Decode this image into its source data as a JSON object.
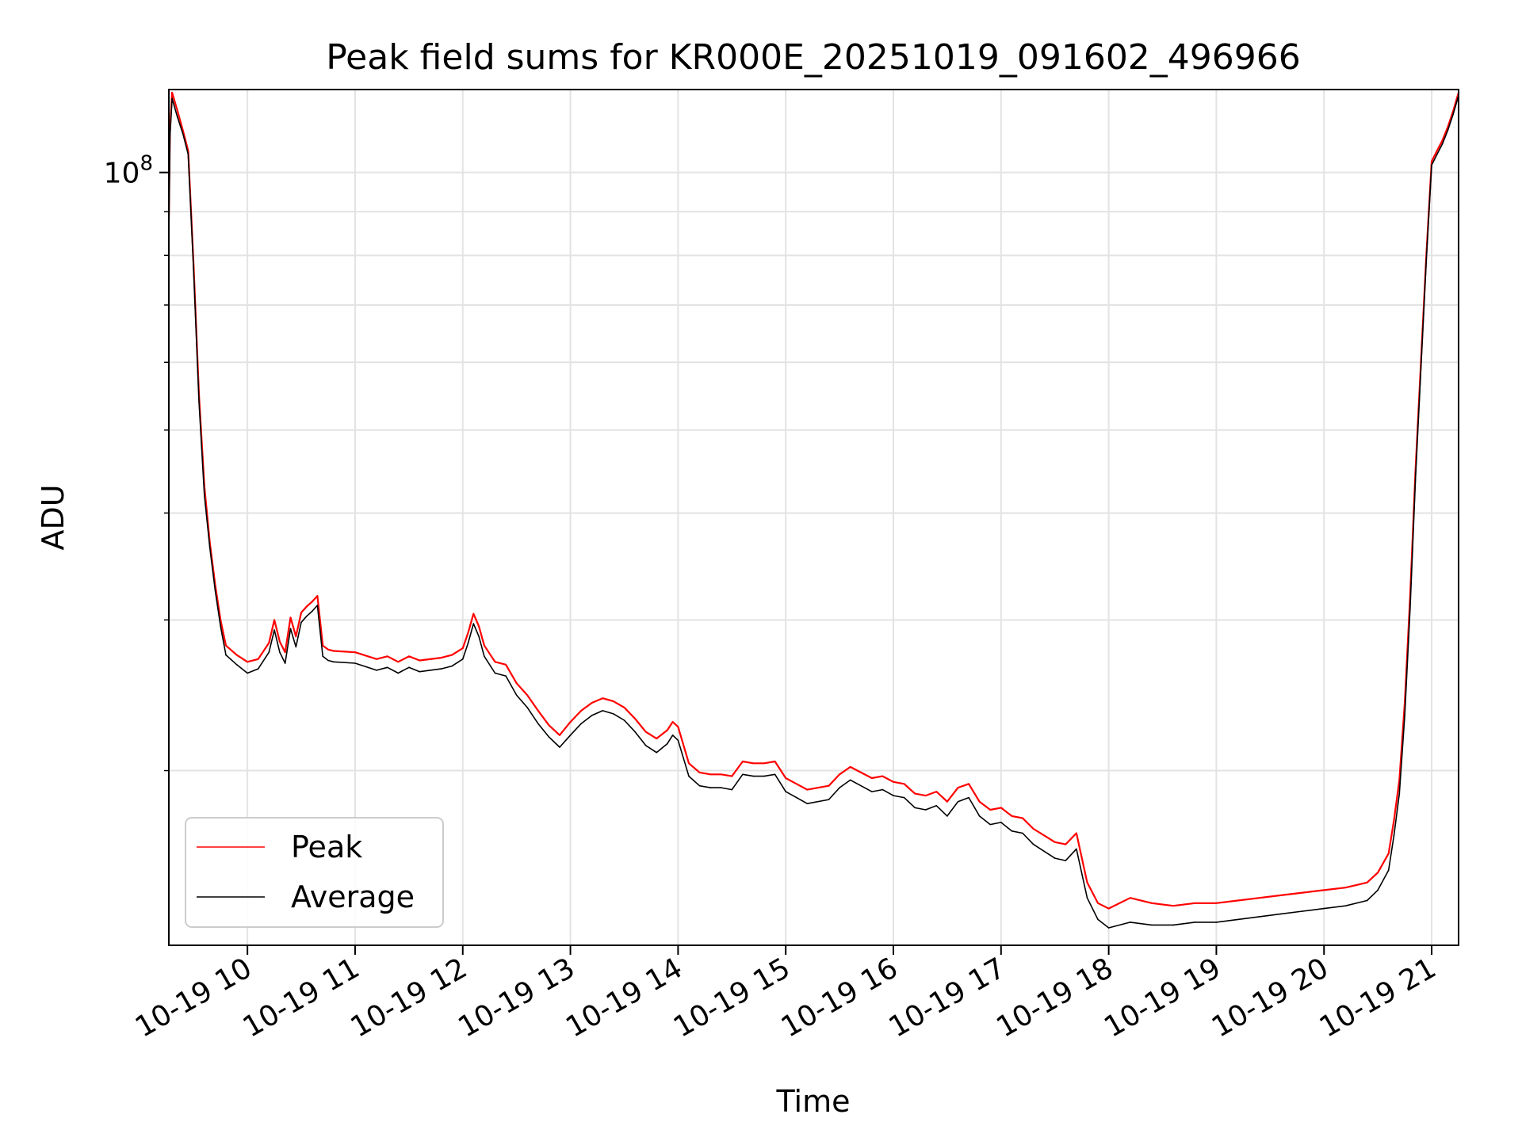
{
  "chart_data": {
    "type": "line",
    "title": "Peak field sums for KR000E_20251019_091602_496966",
    "xlabel": "Time",
    "ylabel": "ADU",
    "yscale": "log",
    "ylim": [
      12500000,
      125000000
    ],
    "xlim": [
      9.27,
      21.25
    ],
    "x_tick_values": [
      10,
      11,
      12,
      13,
      14,
      15,
      16,
      17,
      18,
      19,
      20,
      21
    ],
    "x_tick_labels": [
      "10-19 10",
      "10-19 11",
      "10-19 12",
      "10-19 13",
      "10-19 14",
      "10-19 15",
      "10-19 16",
      "10-19 17",
      "10-19 18",
      "10-19 19",
      "10-19 20",
      "10-19 21"
    ],
    "y_major_ticks": [
      {
        "value": 100000000,
        "base": "10",
        "exponent": "8"
      }
    ],
    "y_minor_ticks": [
      20000000,
      30000000,
      40000000,
      50000000,
      60000000,
      70000000,
      80000000,
      90000000
    ],
    "grid": true,
    "legend_position": "lower-left",
    "series": [
      {
        "name": "Peak",
        "color": "#ff0000",
        "x": [
          9.27,
          9.28,
          9.3,
          9.35,
          9.4,
          9.45,
          9.5,
          9.55,
          9.6,
          9.65,
          9.7,
          9.75,
          9.8,
          9.9,
          10.0,
          10.1,
          10.2,
          10.25,
          10.3,
          10.35,
          10.4,
          10.45,
          10.5,
          10.55,
          10.6,
          10.65,
          10.7,
          10.75,
          10.8,
          11.0,
          11.2,
          11.3,
          11.4,
          11.5,
          11.6,
          11.8,
          11.9,
          12.0,
          12.05,
          12.1,
          12.15,
          12.2,
          12.3,
          12.4,
          12.5,
          12.6,
          12.7,
          12.8,
          12.9,
          13.0,
          13.1,
          13.2,
          13.3,
          13.4,
          13.5,
          13.6,
          13.7,
          13.8,
          13.9,
          13.95,
          14.0,
          14.1,
          14.2,
          14.3,
          14.4,
          14.5,
          14.6,
          14.7,
          14.8,
          14.9,
          15.0,
          15.1,
          15.2,
          15.4,
          15.5,
          15.6,
          15.8,
          15.9,
          16.0,
          16.1,
          16.2,
          16.3,
          16.4,
          16.5,
          16.6,
          16.7,
          16.8,
          16.9,
          17.0,
          17.1,
          17.2,
          17.3,
          17.4,
          17.5,
          17.6,
          17.7,
          17.8,
          17.9,
          18.0,
          18.2,
          18.4,
          18.6,
          18.8,
          19.0,
          19.2,
          19.4,
          19.6,
          19.8,
          20.0,
          20.2,
          20.4,
          20.5,
          20.6,
          20.65,
          20.7,
          20.75,
          20.8,
          20.85,
          20.9,
          20.95,
          21.0,
          21.05,
          21.1,
          21.15,
          21.2,
          21.25
        ],
        "values": [
          88000000,
          112000000,
          124000000,
          118000000,
          112000000,
          106000000,
          78000000,
          55000000,
          43000000,
          37000000,
          33000000,
          30000000,
          28000000,
          27300000,
          26800000,
          27000000,
          28200000,
          30000000,
          28300000,
          27500000,
          30200000,
          28700000,
          30600000,
          31100000,
          31500000,
          32000000,
          28000000,
          27700000,
          27600000,
          27500000,
          27000000,
          27200000,
          26800000,
          27200000,
          26900000,
          27100000,
          27300000,
          27800000,
          29000000,
          30500000,
          29500000,
          28000000,
          26800000,
          26600000,
          25300000,
          24500000,
          23500000,
          22600000,
          22000000,
          22800000,
          23500000,
          24000000,
          24300000,
          24100000,
          23700000,
          23000000,
          22200000,
          21800000,
          22300000,
          22800000,
          22500000,
          20400000,
          19900000,
          19800000,
          19800000,
          19700000,
          20500000,
          20400000,
          20400000,
          20500000,
          19600000,
          19300000,
          19000000,
          19200000,
          19800000,
          20200000,
          19600000,
          19700000,
          19400000,
          19300000,
          18800000,
          18700000,
          18900000,
          18400000,
          19100000,
          19300000,
          18400000,
          18000000,
          18100000,
          17700000,
          17600000,
          17100000,
          16800000,
          16500000,
          16400000,
          16900000,
          14800000,
          14000000,
          13800000,
          14200000,
          14000000,
          13900000,
          14000000,
          14000000,
          14100000,
          14200000,
          14300000,
          14400000,
          14500000,
          14600000,
          14800000,
          15200000,
          16000000,
          17500000,
          19500000,
          24000000,
          32000000,
          45000000,
          60000000,
          80000000,
          103000000,
          106000000,
          109000000,
          113000000,
          118000000,
          124000000
        ]
      },
      {
        "name": "Average",
        "color": "#000000",
        "x": [
          9.27,
          9.28,
          9.3,
          9.35,
          9.4,
          9.45,
          9.5,
          9.55,
          9.6,
          9.65,
          9.7,
          9.75,
          9.8,
          9.9,
          10.0,
          10.1,
          10.2,
          10.25,
          10.3,
          10.35,
          10.4,
          10.45,
          10.5,
          10.55,
          10.6,
          10.65,
          10.7,
          10.75,
          10.8,
          11.0,
          11.2,
          11.3,
          11.4,
          11.5,
          11.6,
          11.8,
          11.9,
          12.0,
          12.05,
          12.1,
          12.15,
          12.2,
          12.3,
          12.4,
          12.5,
          12.6,
          12.7,
          12.8,
          12.9,
          13.0,
          13.1,
          13.2,
          13.3,
          13.4,
          13.5,
          13.6,
          13.7,
          13.8,
          13.9,
          13.95,
          14.0,
          14.1,
          14.2,
          14.3,
          14.4,
          14.5,
          14.6,
          14.7,
          14.8,
          14.9,
          15.0,
          15.1,
          15.2,
          15.4,
          15.5,
          15.6,
          15.8,
          15.9,
          16.0,
          16.1,
          16.2,
          16.3,
          16.4,
          16.5,
          16.6,
          16.7,
          16.8,
          16.9,
          17.0,
          17.1,
          17.2,
          17.3,
          17.4,
          17.5,
          17.6,
          17.7,
          17.8,
          17.9,
          18.0,
          18.2,
          18.4,
          18.6,
          18.8,
          19.0,
          19.2,
          19.4,
          19.6,
          19.8,
          20.0,
          20.2,
          20.4,
          20.5,
          20.6,
          20.65,
          20.7,
          20.75,
          20.8,
          20.85,
          20.9,
          20.95,
          21.0,
          21.05,
          21.1,
          21.15,
          21.2,
          21.25
        ],
        "values": [
          85000000,
          110000000,
          122000000,
          116000000,
          111000000,
          105000000,
          77000000,
          54000000,
          42000000,
          36500000,
          32500000,
          29500000,
          27300000,
          26600000,
          26000000,
          26300000,
          27500000,
          29200000,
          27500000,
          26700000,
          29300000,
          27900000,
          29800000,
          30300000,
          30700000,
          31200000,
          27200000,
          26900000,
          26800000,
          26700000,
          26200000,
          26400000,
          26000000,
          26400000,
          26100000,
          26300000,
          26500000,
          27000000,
          28200000,
          29700000,
          28700000,
          27200000,
          26000000,
          25800000,
          24500000,
          23700000,
          22700000,
          21900000,
          21300000,
          22000000,
          22700000,
          23200000,
          23500000,
          23300000,
          22900000,
          22200000,
          21400000,
          21000000,
          21500000,
          22000000,
          21700000,
          19700000,
          19200000,
          19100000,
          19100000,
          19000000,
          19800000,
          19700000,
          19700000,
          19800000,
          18900000,
          18600000,
          18300000,
          18500000,
          19100000,
          19500000,
          18900000,
          19000000,
          18700000,
          18600000,
          18100000,
          18000000,
          18200000,
          17700000,
          18400000,
          18600000,
          17700000,
          17300000,
          17400000,
          17000000,
          16900000,
          16400000,
          16100000,
          15800000,
          15700000,
          16200000,
          14200000,
          13400000,
          13100000,
          13300000,
          13200000,
          13200000,
          13300000,
          13300000,
          13400000,
          13500000,
          13600000,
          13700000,
          13800000,
          13900000,
          14100000,
          14500000,
          15300000,
          16800000,
          18800000,
          23200000,
          31000000,
          44000000,
          59000000,
          79000000,
          102000000,
          105000000,
          108000000,
          112000000,
          117000000,
          123000000
        ]
      }
    ]
  }
}
